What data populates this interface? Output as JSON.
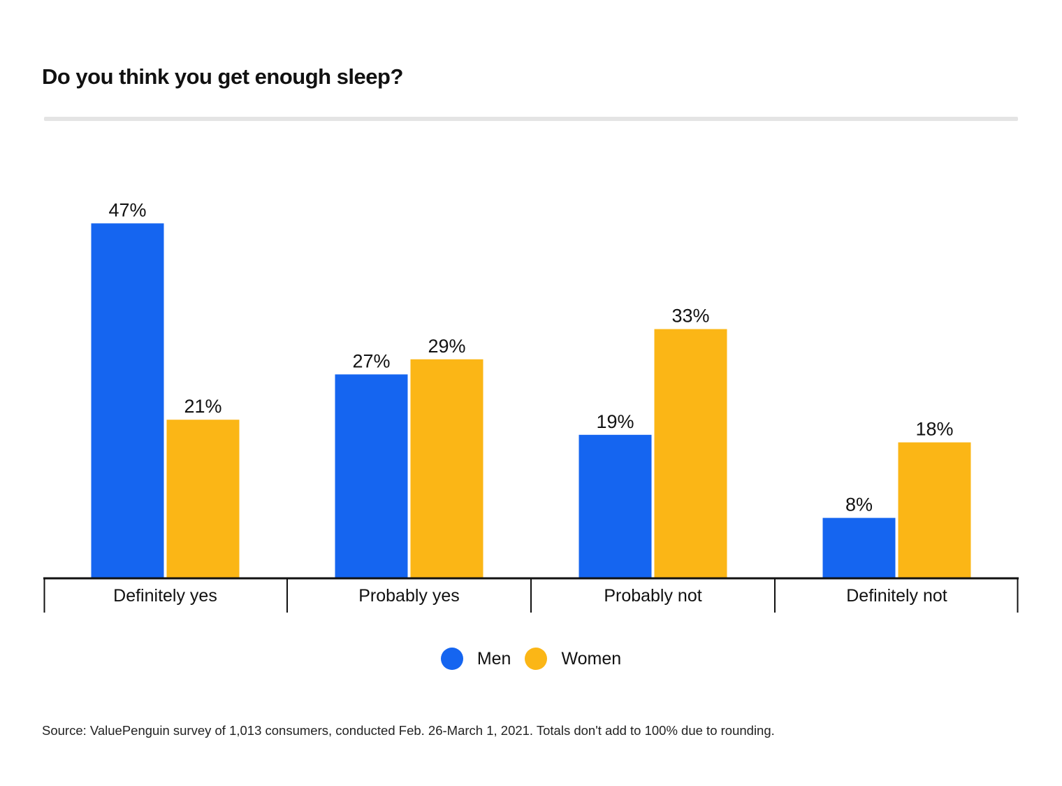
{
  "chart_data": {
    "type": "bar",
    "title": "Do you think you get enough sleep?",
    "categories": [
      "Definitely yes",
      "Probably yes",
      "Probably not",
      "Definitely not"
    ],
    "series": [
      {
        "name": "Men",
        "color": "#1565f0",
        "values": [
          47,
          27,
          19,
          8
        ],
        "labels": [
          "47%",
          "27%",
          "19%",
          "8%"
        ]
      },
      {
        "name": "Women",
        "color": "#fbb616",
        "values": [
          21,
          29,
          33,
          18
        ],
        "labels": [
          "21%",
          "29%",
          "33%",
          "18%"
        ]
      }
    ],
    "ylim": [
      0,
      60
    ],
    "grid": false,
    "legend_position": "bottom-center",
    "source": "Source: ValuePenguin survey of 1,013 consumers, conducted Feb. 26-March 1, 2021. Totals don't add to 100% due to rounding."
  }
}
